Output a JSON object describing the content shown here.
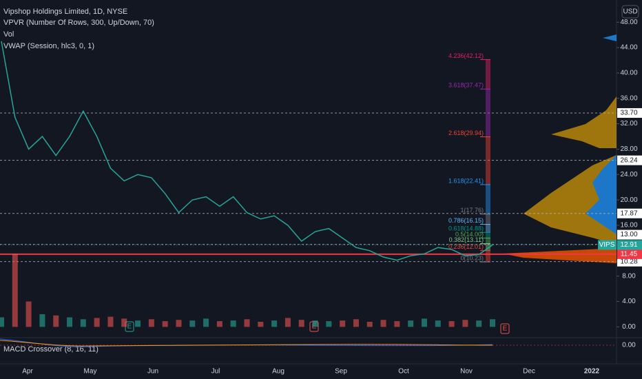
{
  "chart_data": {
    "type": "line",
    "title": "Vipshop Holdings Limited, 1D, NYSE",
    "indicators": [
      "VPVR (Number Of Rows, 300, Up/Down, 70)",
      "Vol",
      "VWAP (Session, hlc3, 0, 1)"
    ],
    "macd_title": "MACD Crossover (8, 16, 11)",
    "macd_ticks": [
      {
        "value": 0,
        "label": "0.00"
      }
    ],
    "currency": "USD",
    "months": [
      "Apr",
      "May",
      "Jun",
      "Jul",
      "Aug",
      "Sep",
      "Oct",
      "Nov",
      "Dec",
      "2022"
    ],
    "series": [
      {
        "name": "VIPS",
        "color": "#26a69a",
        "down_color": "#ef5350",
        "values": [
          45,
          33,
          28,
          30,
          27,
          30,
          34,
          30,
          25,
          23,
          24,
          23.5,
          21,
          18,
          20,
          20.5,
          19,
          20.5,
          18,
          17,
          17.5,
          16,
          13.5,
          15,
          15.5,
          14,
          12.5,
          12,
          11,
          10.5,
          11.2,
          11.5,
          12.5,
          12.2,
          11.2,
          11.4,
          12.9
        ]
      },
      {
        "name": "Vol",
        "values": [
          1.5,
          11.5,
          4,
          2,
          1.8,
          1.5,
          1.2,
          1.4,
          1.6,
          1.3,
          1.0,
          1.2,
          0.9,
          1.1,
          1.0,
          1.3,
          0.9,
          1.0,
          1.2,
          0.8,
          1.0,
          1.4,
          1.1,
          1.0,
          0.9,
          1.0,
          1.2,
          0.8,
          1.1,
          0.9,
          1.0,
          1.3,
          1.0,
          0.9,
          1.1,
          1.0,
          1.2
        ]
      }
    ],
    "ylim": [
      -1.7,
      51.5
    ],
    "yticks": [
      {
        "value": 48,
        "label": "48.00"
      },
      {
        "value": 44,
        "label": "44.00"
      },
      {
        "value": 40,
        "label": "40.00"
      },
      {
        "value": 36,
        "label": "36.00"
      },
      {
        "value": 32,
        "label": "32.00"
      },
      {
        "value": 28,
        "label": "28.00"
      },
      {
        "value": 24,
        "label": "24.00"
      },
      {
        "value": 20,
        "label": "20.00"
      },
      {
        "value": 16,
        "label": "16.00"
      },
      {
        "value": 8,
        "label": "8.00"
      },
      {
        "value": 4,
        "label": "4.00"
      },
      {
        "value": 0,
        "label": "0.00"
      }
    ],
    "levels": [
      {
        "value": 33.7,
        "label": "33.70"
      },
      {
        "value": 26.24,
        "label": "26.24"
      },
      {
        "value": 17.87,
        "label": "17.87"
      },
      {
        "value": 13,
        "label": "13.00"
      },
      {
        "value": 10.28,
        "label": "10.28"
      }
    ],
    "support": {
      "value": 11.45,
      "label": "11.45",
      "color": "#f23645"
    },
    "last_price": {
      "value": 12.91,
      "label": "12.91",
      "color": "#26a69a"
    },
    "fib_levels": [
      {
        "value": 42.12,
        "label": "4.236(42.12)",
        "color": "#e91e63"
      },
      {
        "value": 37.47,
        "label": "3.618(37.47)",
        "color": "#9c27b0"
      },
      {
        "value": 29.94,
        "label": "2.618(29.94)",
        "color": "#f44336"
      },
      {
        "value": 22.41,
        "label": "1.618(22.41)",
        "color": "#2196f3"
      },
      {
        "value": 17.76,
        "label": "1(17.76)",
        "color": "#787b86"
      },
      {
        "value": 16.15,
        "label": "0.786(16.15)",
        "color": "#64b5f6"
      },
      {
        "value": 14.88,
        "label": "0.618(14.88)",
        "color": "#009688"
      },
      {
        "value": 14.0,
        "label": "0.5(14.00)",
        "color": "#4caf50"
      },
      {
        "value": 13.11,
        "label": "0.382(13.11)",
        "color": "#81c784"
      },
      {
        "value": 12.01,
        "label": "0.236(12.01)",
        "color": "#f44336"
      },
      {
        "value": 10.23,
        "label": "0(10.23)",
        "color": "#787b86"
      }
    ]
  }
}
